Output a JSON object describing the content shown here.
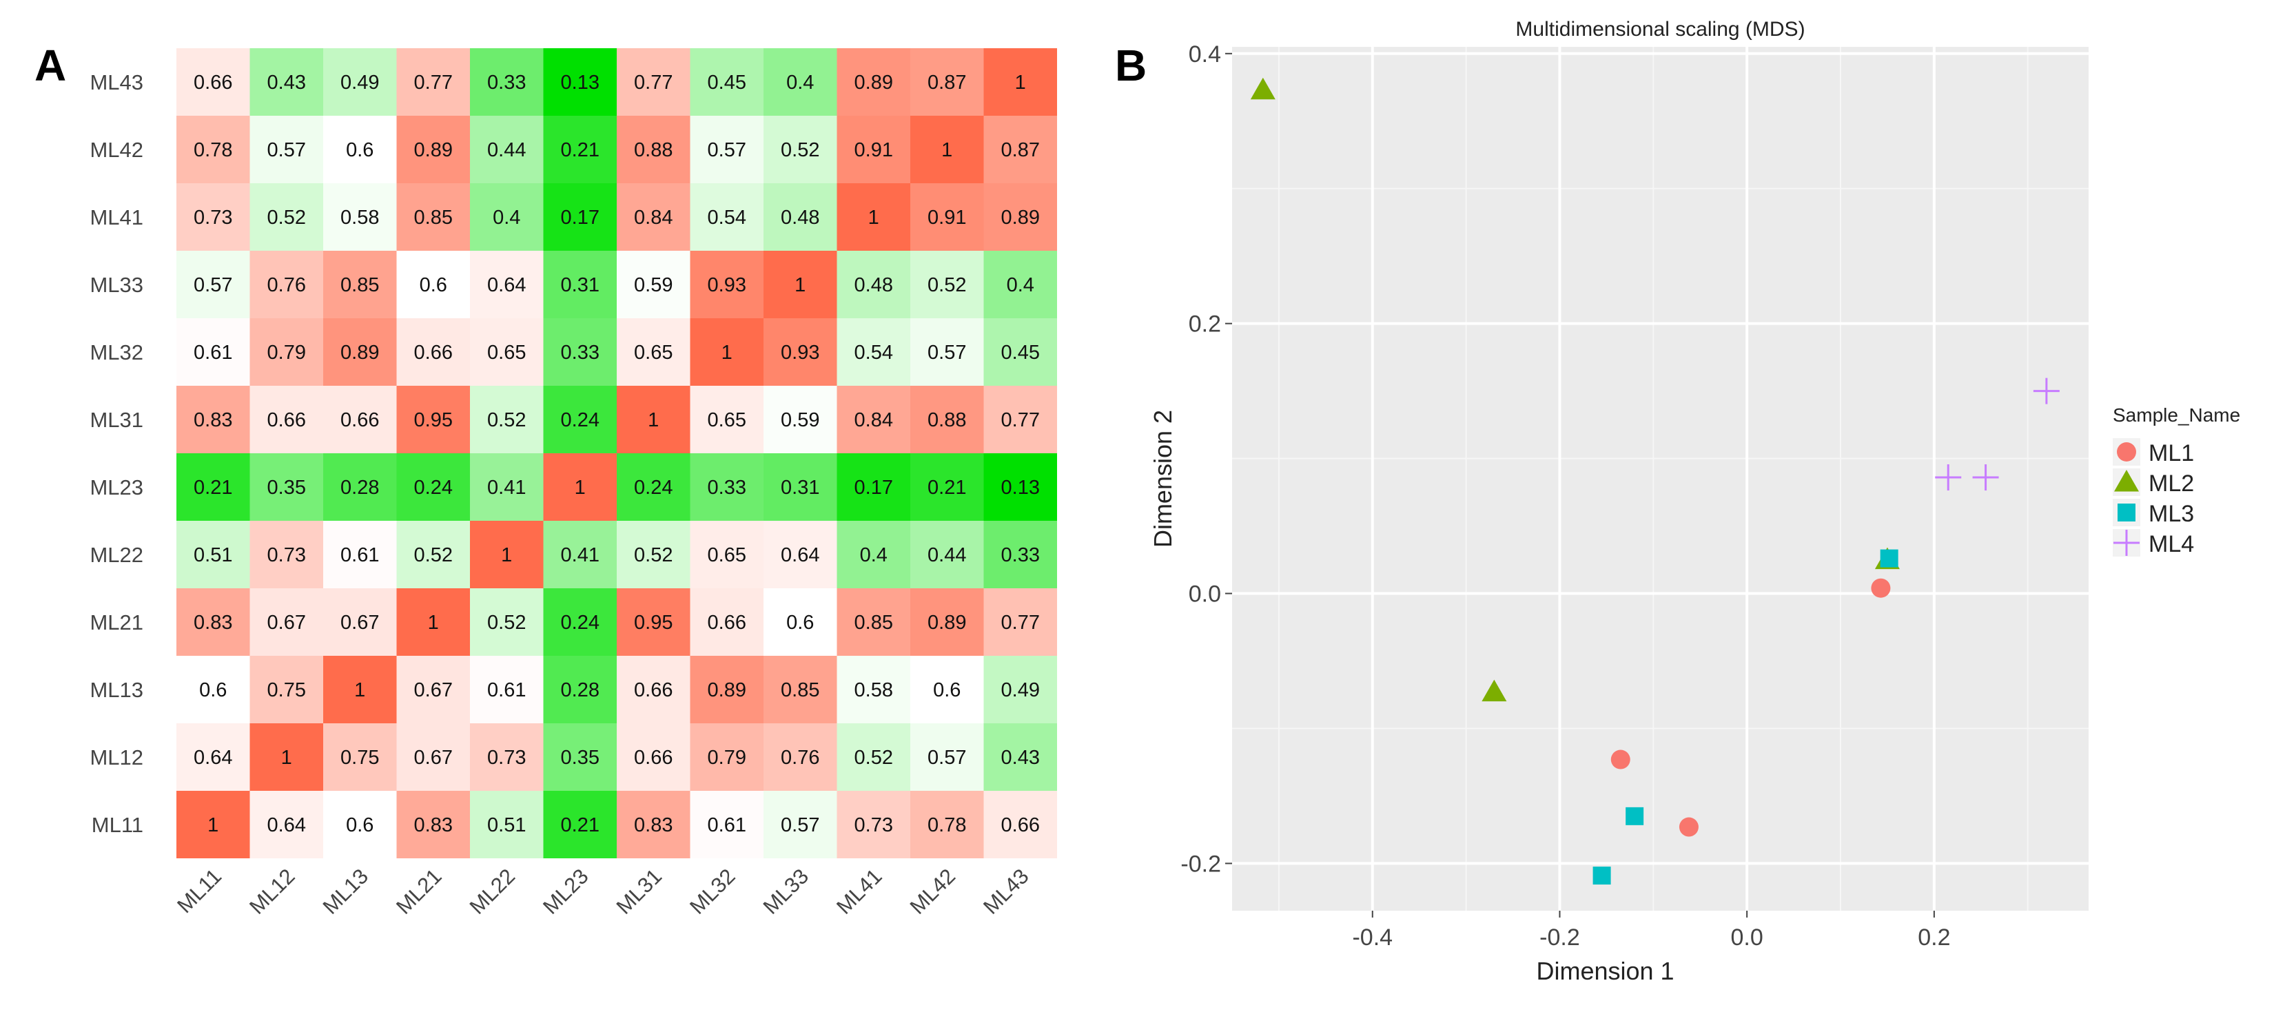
{
  "panel_a_label": "A",
  "panel_b_label": "B",
  "chart_data": [
    {
      "type": "heatmap",
      "rows": [
        "ML43",
        "ML42",
        "ML41",
        "ML33",
        "ML32",
        "ML31",
        "ML23",
        "ML22",
        "ML21",
        "ML13",
        "ML12",
        "ML11"
      ],
      "columns": [
        "ML11",
        "ML12",
        "ML13",
        "ML21",
        "ML22",
        "ML23",
        "ML31",
        "ML32",
        "ML33",
        "ML41",
        "ML42",
        "ML43"
      ],
      "values": [
        [
          "0.66",
          "0.43",
          "0.49",
          "0.77",
          "0.33",
          "0.13",
          "0.77",
          "0.45",
          "0.4",
          "0.89",
          "0.87",
          "1"
        ],
        [
          "0.78",
          "0.57",
          "0.6",
          "0.89",
          "0.44",
          "0.21",
          "0.88",
          "0.57",
          "0.52",
          "0.91",
          "1",
          "0.87"
        ],
        [
          "0.73",
          "0.52",
          "0.58",
          "0.85",
          "0.4",
          "0.17",
          "0.84",
          "0.54",
          "0.48",
          "1",
          "0.91",
          "0.89"
        ],
        [
          "0.57",
          "0.76",
          "0.85",
          "0.6",
          "0.64",
          "0.31",
          "0.59",
          "0.93",
          "1",
          "0.48",
          "0.52",
          "0.4"
        ],
        [
          "0.61",
          "0.79",
          "0.89",
          "0.66",
          "0.65",
          "0.33",
          "0.65",
          "1",
          "0.93",
          "0.54",
          "0.57",
          "0.45"
        ],
        [
          "0.83",
          "0.66",
          "0.66",
          "0.95",
          "0.52",
          "0.24",
          "1",
          "0.65",
          "0.59",
          "0.84",
          "0.88",
          "0.77"
        ],
        [
          "0.21",
          "0.35",
          "0.28",
          "0.24",
          "0.41",
          "1",
          "0.24",
          "0.33",
          "0.31",
          "0.17",
          "0.21",
          "0.13"
        ],
        [
          "0.51",
          "0.73",
          "0.61",
          "0.52",
          "1",
          "0.41",
          "0.52",
          "0.65",
          "0.64",
          "0.4",
          "0.44",
          "0.33"
        ],
        [
          "0.83",
          "0.67",
          "0.67",
          "1",
          "0.52",
          "0.24",
          "0.95",
          "0.66",
          "0.6",
          "0.85",
          "0.89",
          "0.77"
        ],
        [
          "0.6",
          "0.75",
          "1",
          "0.67",
          "0.61",
          "0.28",
          "0.66",
          "0.89",
          "0.85",
          "0.58",
          "0.6",
          "0.49"
        ],
        [
          "0.64",
          "1",
          "0.75",
          "0.67",
          "0.73",
          "0.35",
          "0.66",
          "0.79",
          "0.76",
          "0.52",
          "0.57",
          "0.43"
        ],
        [
          "1",
          "0.64",
          "0.6",
          "0.83",
          "0.51",
          "0.21",
          "0.83",
          "0.61",
          "0.57",
          "0.73",
          "0.78",
          "0.66"
        ]
      ],
      "color_low": "#00e000",
      "color_mid": "#ffffff",
      "color_high": "#ff6c4c"
    },
    {
      "type": "scatter",
      "title": "Multidimensional scaling (MDS)",
      "xlabel": "Dimension 1",
      "ylabel": "Dimension 2",
      "xlim": [
        -0.55,
        0.365
      ],
      "ylim": [
        -0.235,
        0.405
      ],
      "x_ticks": [
        {
          "v": -0.4,
          "label": "-0.4"
        },
        {
          "v": -0.2,
          "label": "-0.2"
        },
        {
          "v": 0,
          "label": "0.0"
        },
        {
          "v": 0.2,
          "label": "0.2"
        }
      ],
      "y_ticks": [
        {
          "v": -0.2,
          "label": "-0.2"
        },
        {
          "v": 0,
          "label": "0.0"
        },
        {
          "v": 0.2,
          "label": "0.2"
        },
        {
          "v": 0.4,
          "label": "0.4"
        }
      ],
      "grid": true,
      "panel_bg": "#ebebeb",
      "legend_title": "Sample_Name",
      "legend_position": "right",
      "series": [
        {
          "name": "ML1",
          "shape": "circle",
          "color": "#f8766d",
          "points": [
            [
              0.143,
              0.004
            ],
            [
              -0.135,
              -0.123
            ],
            [
              -0.062,
              -0.173
            ]
          ]
        },
        {
          "name": "ML2",
          "shape": "triangle",
          "color": "#7cae00",
          "points": [
            [
              -0.517,
              0.373
            ],
            [
              -0.27,
              -0.073
            ],
            [
              0.15,
              0.025
            ]
          ]
        },
        {
          "name": "ML3",
          "shape": "square",
          "color": "#00bfc4",
          "points": [
            [
              0.152,
              0.026
            ],
            [
              -0.12,
              -0.165
            ],
            [
              -0.155,
              -0.209
            ]
          ]
        },
        {
          "name": "ML4",
          "shape": "plus",
          "color": "#c77cff",
          "points": [
            [
              0.215,
              0.086
            ],
            [
              0.255,
              0.086
            ],
            [
              0.32,
              0.15
            ]
          ]
        }
      ]
    }
  ]
}
